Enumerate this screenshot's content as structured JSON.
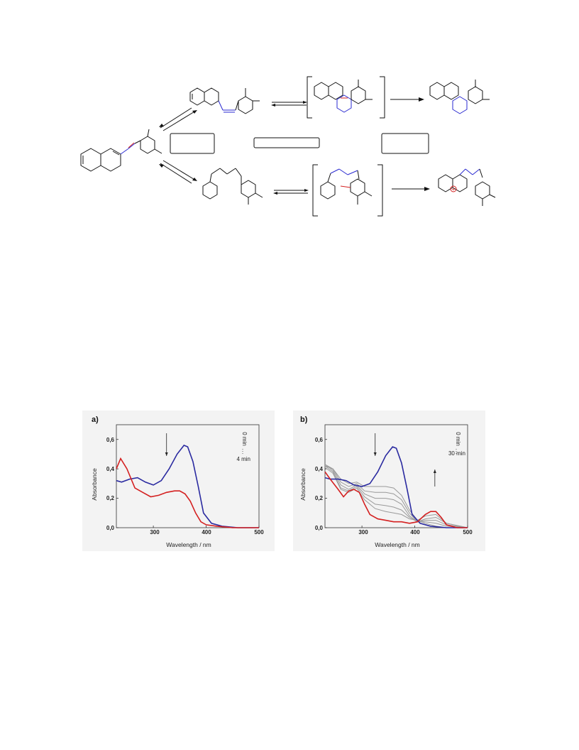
{
  "scheme": {
    "colors": {
      "bond": "#111111",
      "highlight_blue": "#2a2ad0",
      "highlight_red": "#d42020"
    },
    "charge_symbol": "+"
  },
  "chart_data": [
    {
      "panel": "a)",
      "type": "line",
      "xlabel": "Wavelength / nm",
      "ylabel": "Absorbance",
      "xlim": [
        230,
        500
      ],
      "ylim": [
        0,
        0.7
      ],
      "xticks": [
        "300",
        "400",
        "500"
      ],
      "yticks": [
        "0,0",
        "0,2",
        "0,4",
        "0,6"
      ],
      "annotations": {
        "start": "0 min",
        "end": "4 min"
      },
      "arrows": [
        {
          "x": 325,
          "direction": "down"
        }
      ],
      "series": [
        {
          "color": "#2a2aa0",
          "x": [
            230,
            240,
            255,
            270,
            285,
            300,
            315,
            330,
            345,
            358,
            365,
            375,
            385,
            395,
            410,
            430,
            460,
            500
          ],
          "y": [
            0.32,
            0.31,
            0.33,
            0.34,
            0.31,
            0.29,
            0.32,
            0.4,
            0.5,
            0.56,
            0.55,
            0.45,
            0.28,
            0.1,
            0.03,
            0.01,
            0.0,
            0.0
          ]
        },
        {
          "color": "#d42020",
          "x": [
            230,
            238,
            250,
            265,
            280,
            295,
            310,
            325,
            340,
            350,
            360,
            370,
            380,
            390,
            400,
            420,
            450,
            500
          ],
          "y": [
            0.4,
            0.47,
            0.4,
            0.27,
            0.24,
            0.21,
            0.22,
            0.24,
            0.25,
            0.25,
            0.23,
            0.18,
            0.1,
            0.04,
            0.02,
            0.01,
            0.0,
            0.0
          ]
        }
      ]
    },
    {
      "panel": "b)",
      "type": "line",
      "xlabel": "Wavelength / nm",
      "ylabel": "Absorbance",
      "xlim": [
        230,
        500
      ],
      "ylim": [
        0,
        0.7
      ],
      "xticks": [
        "300",
        "400",
        "500"
      ],
      "yticks": [
        "0,0",
        "0,2",
        "0,4",
        "0,6"
      ],
      "annotations": {
        "start": "0 min",
        "end": "30 min"
      },
      "arrows": [
        {
          "x": 325,
          "direction": "down"
        },
        {
          "x": 438,
          "direction": "up"
        }
      ],
      "series": [
        {
          "color": "#2a2aa0",
          "x": [
            230,
            240,
            255,
            270,
            285,
            300,
            315,
            330,
            345,
            358,
            365,
            375,
            385,
            395,
            410,
            430,
            460,
            500
          ],
          "y": [
            0.34,
            0.33,
            0.33,
            0.32,
            0.29,
            0.28,
            0.3,
            0.38,
            0.49,
            0.55,
            0.54,
            0.44,
            0.27,
            0.09,
            0.03,
            0.01,
            0.0,
            0.0
          ]
        },
        {
          "color": "#9a9a9a",
          "x": [
            230,
            245,
            260,
            275,
            290,
            305,
            325,
            345,
            360,
            375,
            390,
            405,
            420,
            440,
            460,
            500
          ],
          "y": [
            0.42,
            0.4,
            0.33,
            0.3,
            0.31,
            0.28,
            0.28,
            0.28,
            0.27,
            0.22,
            0.12,
            0.05,
            0.03,
            0.01,
            0.0,
            0.0
          ]
        },
        {
          "color": "#9a9a9a",
          "x": [
            230,
            245,
            260,
            275,
            290,
            305,
            325,
            345,
            360,
            375,
            390,
            405,
            420,
            440,
            460,
            500
          ],
          "y": [
            0.43,
            0.4,
            0.31,
            0.28,
            0.3,
            0.25,
            0.24,
            0.24,
            0.23,
            0.19,
            0.1,
            0.04,
            0.04,
            0.03,
            0.01,
            0.0
          ]
        },
        {
          "color": "#9a9a9a",
          "x": [
            230,
            245,
            260,
            275,
            290,
            305,
            325,
            345,
            360,
            375,
            390,
            405,
            420,
            440,
            460,
            500
          ],
          "y": [
            0.43,
            0.39,
            0.29,
            0.26,
            0.29,
            0.23,
            0.2,
            0.2,
            0.19,
            0.16,
            0.08,
            0.04,
            0.05,
            0.05,
            0.02,
            0.0
          ]
        },
        {
          "color": "#9a9a9a",
          "x": [
            230,
            245,
            260,
            275,
            290,
            305,
            325,
            345,
            360,
            375,
            390,
            405,
            420,
            440,
            460,
            500
          ],
          "y": [
            0.42,
            0.38,
            0.27,
            0.25,
            0.28,
            0.21,
            0.16,
            0.15,
            0.14,
            0.12,
            0.07,
            0.04,
            0.06,
            0.07,
            0.03,
            0.0
          ]
        },
        {
          "color": "#9a9a9a",
          "x": [
            230,
            245,
            260,
            275,
            290,
            305,
            325,
            345,
            360,
            375,
            390,
            405,
            420,
            440,
            460,
            500
          ],
          "y": [
            0.41,
            0.37,
            0.26,
            0.24,
            0.27,
            0.19,
            0.13,
            0.11,
            0.1,
            0.09,
            0.06,
            0.05,
            0.08,
            0.09,
            0.03,
            0.0
          ]
        },
        {
          "color": "#d42020",
          "x": [
            230,
            240,
            255,
            265,
            275,
            285,
            295,
            305,
            315,
            330,
            345,
            360,
            375,
            390,
            405,
            420,
            430,
            440,
            450,
            460,
            480,
            500
          ],
          "y": [
            0.38,
            0.33,
            0.26,
            0.21,
            0.25,
            0.26,
            0.24,
            0.16,
            0.09,
            0.06,
            0.05,
            0.04,
            0.04,
            0.03,
            0.04,
            0.09,
            0.11,
            0.11,
            0.07,
            0.02,
            0.0,
            0.0
          ]
        }
      ]
    }
  ]
}
